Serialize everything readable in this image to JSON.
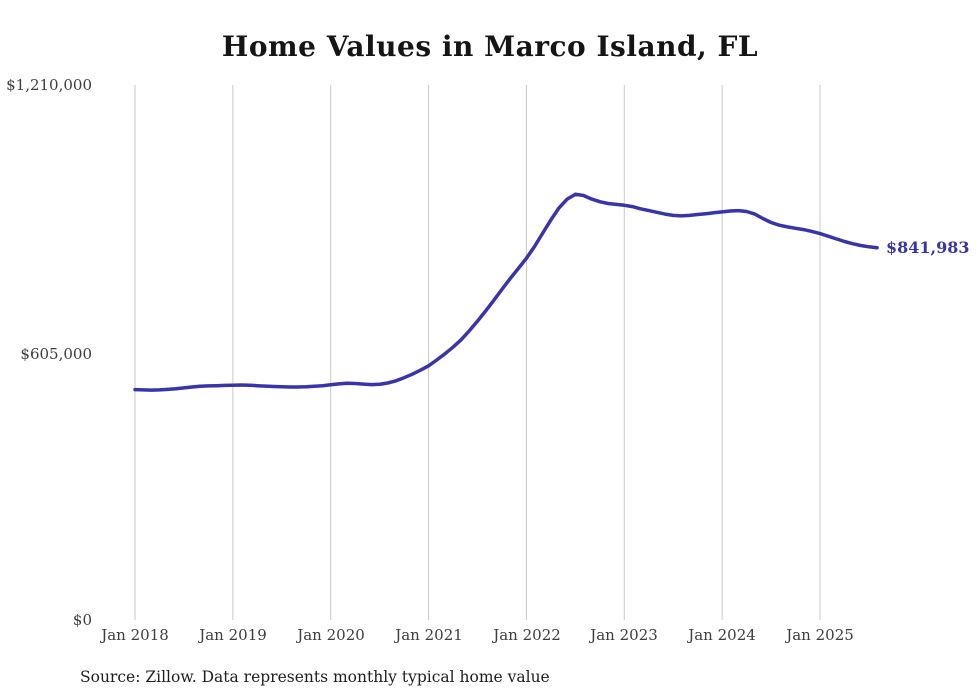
{
  "title": "Home Values in Marco Island, FL",
  "source_note": "Source: Zillow. Data represents monthly typical home value",
  "end_label": "$841,983",
  "colors": {
    "line": "#3A34AB",
    "grid": "#c9c9c9",
    "axis_text": "#3d3d3d",
    "title_text": "#151515"
  },
  "y_axis": {
    "ticks": [
      {
        "label": "$1,210,000",
        "value": 1210000
      },
      {
        "label": "$605,000",
        "value": 605000
      },
      {
        "label": "$0",
        "value": 0
      }
    ]
  },
  "x_axis": {
    "ticks": [
      "Jan 2018",
      "Jan 2019",
      "Jan 2020",
      "Jan 2021",
      "Jan 2022",
      "Jan 2023",
      "Jan 2024",
      "Jan 2025"
    ],
    "grid_months": [
      0,
      12,
      24,
      36,
      48,
      60,
      72,
      84
    ]
  },
  "chart_data": {
    "type": "line",
    "title": "Home Values in Marco Island, FL",
    "x_start": "Jan 2018",
    "x_interval": "monthly",
    "x_tick_labels": [
      "Jan 2018",
      "Jan 2019",
      "Jan 2020",
      "Jan 2021",
      "Jan 2022",
      "Jan 2023",
      "Jan 2024",
      "Jan 2025"
    ],
    "ylim": [
      0,
      1210000
    ],
    "y_tick_values": [
      0,
      605000,
      1210000
    ],
    "grid": "vertical-only",
    "legend": "none",
    "unit": "USD",
    "last_value": 841983,
    "last_value_label": "$841,983",
    "series": [
      {
        "name": "Typical home value",
        "values": [
          521000,
          520500,
          520000,
          520500,
          521500,
          523000,
          525000,
          527000,
          528500,
          529500,
          530000,
          530500,
          531000,
          531500,
          531000,
          530000,
          529000,
          528000,
          527500,
          527000,
          527000,
          527500,
          528500,
          530000,
          532000,
          534000,
          535500,
          535000,
          533500,
          532500,
          533000,
          536000,
          541000,
          548000,
          556000,
          565000,
          575000,
          588000,
          602000,
          617000,
          634000,
          654000,
          676000,
          699000,
          723000,
          748000,
          772000,
          795000,
          818000,
          845000,
          875000,
          905000,
          932000,
          952000,
          963000,
          960000,
          952000,
          946000,
          942000,
          940000,
          938000,
          935000,
          930000,
          926000,
          922000,
          918000,
          915000,
          914000,
          915000,
          917000,
          919000,
          921000,
          923000,
          925000,
          926000,
          924000,
          918000,
          908000,
          899000,
          893000,
          889000,
          886000,
          883000,
          879000,
          874000,
          868000,
          862000,
          856000,
          851000,
          847000,
          844000,
          841983
        ]
      }
    ]
  }
}
